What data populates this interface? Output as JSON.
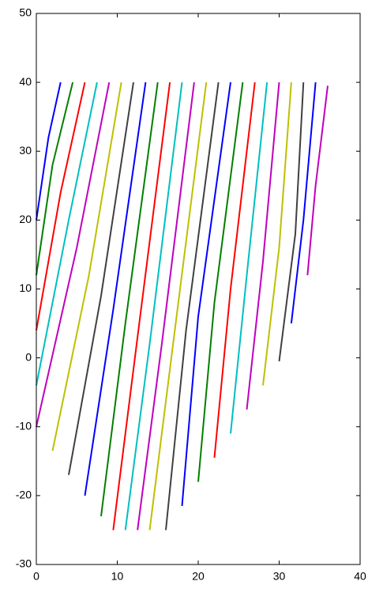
{
  "chart_data": {
    "type": "line",
    "xlim": [
      0,
      40
    ],
    "xticks": [
      0,
      10,
      20,
      30,
      40
    ],
    "ylim": [
      -30,
      50
    ],
    "yticks": [
      -30,
      -20,
      -10,
      0,
      10,
      20,
      30,
      40,
      50
    ],
    "grid": false,
    "series": [
      {
        "color": "#0000ff",
        "x": [
          0,
          1.5,
          3
        ],
        "values": [
          20,
          32,
          40
        ]
      },
      {
        "color": "#008000",
        "x": [
          0,
          2,
          4.5
        ],
        "values": [
          12,
          28,
          40
        ]
      },
      {
        "color": "#ff0000",
        "x": [
          0,
          3,
          6
        ],
        "values": [
          4,
          24,
          40
        ]
      },
      {
        "color": "#00bfbf",
        "x": [
          0,
          4,
          7.5
        ],
        "values": [
          -4,
          20,
          40
        ]
      },
      {
        "color": "#bf00bf",
        "x": [
          0,
          5,
          9
        ],
        "values": [
          -10,
          16,
          40
        ]
      },
      {
        "color": "#bfbf00",
        "x": [
          2,
          6.5,
          10.5
        ],
        "values": [
          -13.5,
          12,
          40
        ]
      },
      {
        "color": "#404040",
        "x": [
          4,
          8,
          12
        ],
        "values": [
          -17,
          9,
          40
        ]
      },
      {
        "color": "#0000ff",
        "x": [
          6,
          9.5,
          13.5
        ],
        "values": [
          -20,
          7,
          40
        ]
      },
      {
        "color": "#008000",
        "x": [
          8,
          11,
          15
        ],
        "values": [
          -23,
          5,
          40
        ]
      },
      {
        "color": "#ff0000",
        "x": [
          9.5,
          12.5,
          16.5
        ],
        "values": [
          -25,
          3,
          40
        ]
      },
      {
        "color": "#00bfbf",
        "x": [
          11,
          14,
          18
        ],
        "values": [
          -25,
          2,
          40
        ]
      },
      {
        "color": "#bf00bf",
        "x": [
          12.5,
          15.5,
          19.5
        ],
        "values": [
          -25,
          2,
          40
        ]
      },
      {
        "color": "#bfbf00",
        "x": [
          14,
          17,
          21
        ],
        "values": [
          -25,
          3,
          40
        ]
      },
      {
        "color": "#404040",
        "x": [
          16,
          18.5,
          22.5
        ],
        "values": [
          -25,
          4,
          40
        ]
      },
      {
        "color": "#0000ff",
        "x": [
          18,
          20,
          24
        ],
        "values": [
          -21.5,
          6,
          40
        ]
      },
      {
        "color": "#008000",
        "x": [
          20,
          22,
          25.5
        ],
        "values": [
          -18,
          8,
          40
        ]
      },
      {
        "color": "#ff0000",
        "x": [
          22,
          24,
          27
        ],
        "values": [
          -14.5,
          10,
          40
        ]
      },
      {
        "color": "#00bfbf",
        "x": [
          24,
          26,
          28.5
        ],
        "values": [
          -11,
          12,
          40
        ]
      },
      {
        "color": "#bf00bf",
        "x": [
          26,
          28,
          30
        ],
        "values": [
          -7.5,
          14,
          40
        ]
      },
      {
        "color": "#bfbf00",
        "x": [
          28,
          30,
          31.5
        ],
        "values": [
          -4,
          16,
          40
        ]
      },
      {
        "color": "#404040",
        "x": [
          30,
          32,
          33
        ],
        "values": [
          -0.5,
          18,
          40
        ]
      },
      {
        "color": "#0000ff",
        "x": [
          31.5,
          33,
          34.5
        ],
        "values": [
          5,
          20,
          40
        ]
      },
      {
        "color": "#bf00bf",
        "x": [
          33.5,
          34.5,
          36
        ],
        "values": [
          12,
          25,
          39.5
        ]
      }
    ]
  }
}
